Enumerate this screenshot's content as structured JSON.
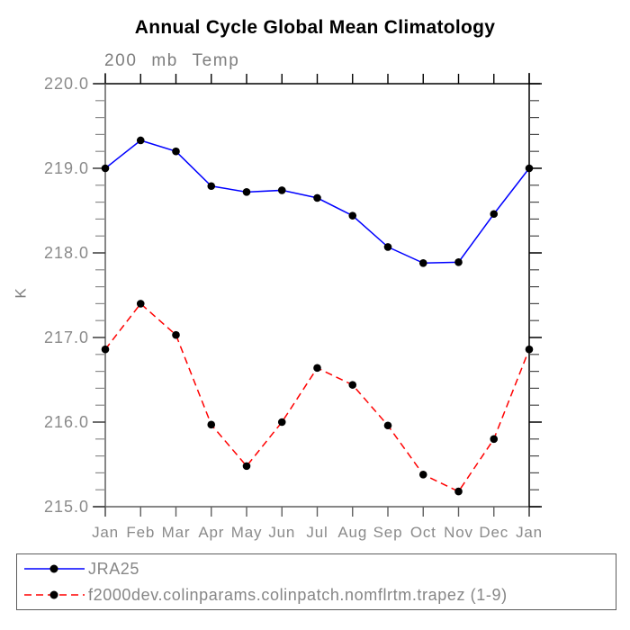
{
  "chart_data": {
    "type": "line",
    "title": "Annual Cycle Global Mean Climatology",
    "subtitle": "200 mb Temp",
    "ylabel": "K",
    "xlabel": "",
    "categories": [
      "Jan",
      "Feb",
      "Mar",
      "Apr",
      "May",
      "Jun",
      "Jul",
      "Aug",
      "Sep",
      "Oct",
      "Nov",
      "Dec",
      "Jan"
    ],
    "ylim": [
      215.0,
      220.0
    ],
    "ytick_step": 1.0,
    "minor_tick_step": 0.2,
    "ytick_labels": [
      "215.0",
      "216.0",
      "217.0",
      "218.0",
      "219.0",
      "220.0"
    ],
    "grid": false,
    "legend_position": "bottom-box",
    "axis_text_color": "#8a8a8a",
    "marker": "filled-circle",
    "marker_color": "#000000",
    "series": [
      {
        "name": "JRA25",
        "color": "#0000ff",
        "line_style": "solid",
        "values": [
          219.0,
          219.33,
          219.2,
          218.79,
          218.72,
          218.74,
          218.65,
          218.44,
          218.07,
          217.88,
          217.89,
          218.46,
          219.0
        ]
      },
      {
        "name": "f2000dev.colinparams.colinpatch.nomflrtm.trapez (1-9)",
        "color": "#ff0000",
        "line_style": "dashed",
        "values": [
          216.86,
          217.4,
          217.03,
          215.97,
          215.48,
          216.0,
          216.64,
          216.44,
          215.96,
          215.38,
          215.18,
          215.8,
          216.86
        ]
      }
    ]
  }
}
